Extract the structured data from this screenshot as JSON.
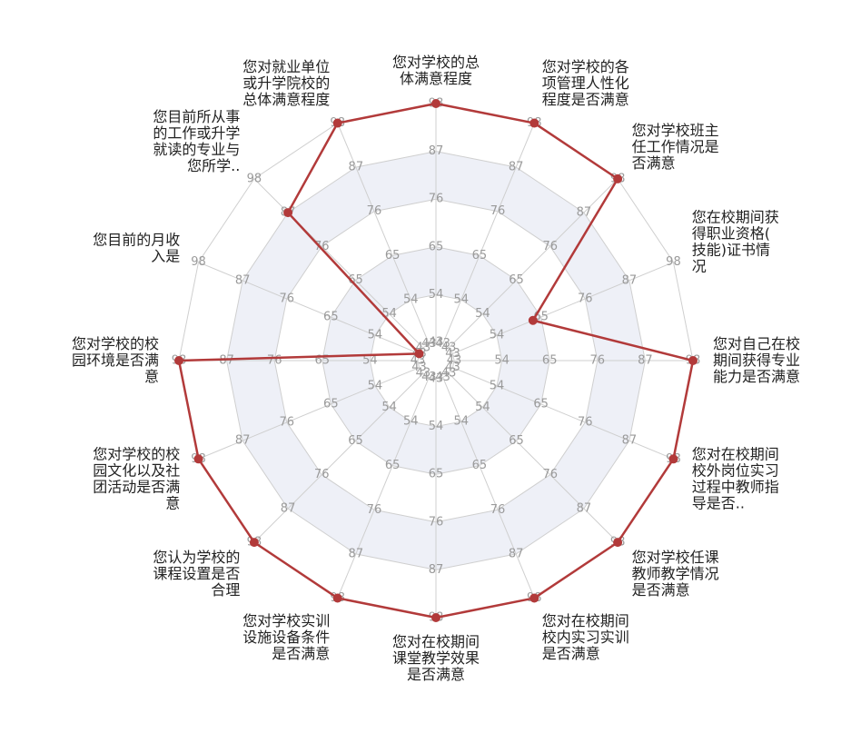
{
  "chart_data": {
    "type": "radar",
    "title": "",
    "axes": [
      "您对学校的总体满意程度",
      "您对学校的各项管理人性化程度是否满意",
      "您对学校班主任工作情况是否满意",
      "您在校期间获得职业资格(技能)证书情况",
      "您对自己在校期间获得专业能力是否满意",
      "您对在校期间校外岗位实习过程中教师指导是否..",
      "您对学校任课教师教学情况是否满意",
      "您对在校期间校内实习实训是否满意",
      "您对在校期间课堂教学效果是否满意",
      "您对学校实训设施设备条件是否满意",
      "您认为学校的课程设置是否合理",
      "您对学校的校园文化以及社团活动是否满意",
      "您对学校的校园环境是否满意",
      "您目前的月收入是",
      "您目前所从事的工作或升学就读的专业与您所学..",
      "您对就业单位或升学院校的总体满意程度"
    ],
    "axis_label_lines": [
      [
        "您对学校的总",
        "体满意程度"
      ],
      [
        "您对学校的各",
        "项管理人性化",
        "程度是否满意"
      ],
      [
        "您对学校班主",
        "任工作情况是",
        "否满意"
      ],
      [
        "您在校期间获",
        "得职业资格(",
        "技能)证书情",
        "况"
      ],
      [
        "您对自己在校",
        "期间获得专业",
        "能力是否满意"
      ],
      [
        "您对在校期间",
        "校外岗位实习",
        "过程中教师指",
        "导是否.."
      ],
      [
        "您对学校任课",
        "教师教学情况",
        "是否满意"
      ],
      [
        "您对在校期间",
        "校内实习实训",
        "是否满意"
      ],
      [
        "您对在校期间",
        "课堂教学效果",
        "是否满意"
      ],
      [
        "您对学校实训",
        "设施设备条件",
        "是否满意"
      ],
      [
        "您认为学校的",
        "课程设置是否",
        "合理"
      ],
      [
        "您对学校的校",
        "园文化以及社",
        "团活动是否满",
        "意"
      ],
      [
        "您对学校的校",
        "园环境是否满",
        "意"
      ],
      [
        "您目前的月收",
        "入是"
      ],
      [
        "您目前所从事",
        "的工作或升学",
        "就读的专业与",
        "您所学.."
      ],
      [
        "您对就业单位",
        "或升学院校的",
        "总体满意程度"
      ]
    ],
    "ticks": [
      43,
      54,
      65,
      76,
      87,
      98
    ],
    "range": [
      43,
      98
    ],
    "series": [
      {
        "values": [
          98,
          98,
          98,
          63,
          98,
          98,
          98,
          98,
          98,
          98,
          98,
          98,
          98,
          43,
          87,
          98
        ]
      }
    ],
    "colors": {
      "series": "#b23a3a",
      "band": "#eef0f7",
      "grid": "#cfcfcf",
      "tick_label": "#9a9a9a",
      "axis_label": "#222222"
    },
    "grid": true,
    "legend": "none"
  }
}
